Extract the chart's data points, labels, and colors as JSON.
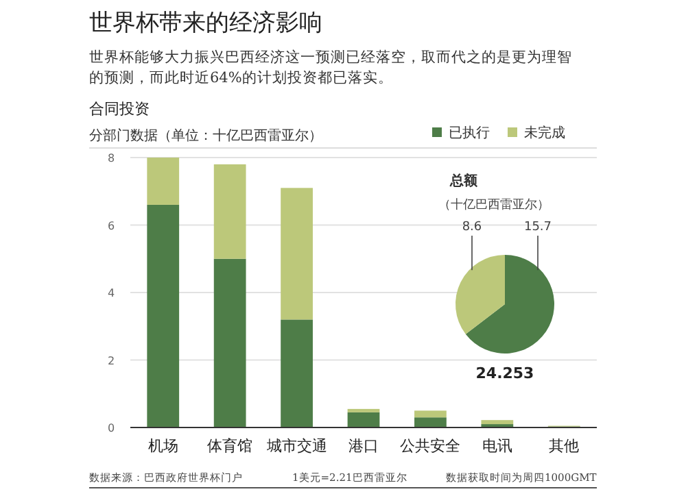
{
  "chart_data": [
    {
      "type": "bar",
      "title": "世界杯带来的经济影响",
      "subtitle": [
        "世界杯能够大力振兴巴西经济这一预测已经落空，取而代之的是更为理智",
        "的预测，而此时近64%的计划投资都已落实。"
      ],
      "ylabel": "分部门数据（单位：十亿巴西雷亚尔）",
      "annotations": [
        "合同投资",
        "数据来源：巴西政府世界杯门户",
        "1美元=2.21巴西雷亚尔",
        "数据获取时间为周四1000GMT"
      ],
      "categories": [
        "机场",
        "体育馆",
        "城市交通",
        "港口",
        "公共安全",
        "电讯",
        "其他"
      ],
      "stacked": true,
      "series": [
        {
          "name": "已执行",
          "color": "#4e7d48",
          "values": [
            6.6,
            5.0,
            3.2,
            0.45,
            0.3,
            0.1,
            0.03
          ]
        },
        {
          "name": "未完成",
          "color": "#bcc87a",
          "values": [
            1.4,
            2.8,
            3.9,
            0.1,
            0.2,
            0.12,
            0.02
          ]
        }
      ],
      "ylim": [
        0,
        8
      ],
      "yticks": [
        0,
        2,
        4,
        6,
        8
      ],
      "grid": "y",
      "legend": "top right"
    },
    {
      "type": "pie",
      "title": "总额",
      "subtitle": "（十亿巴西雷亚尔）",
      "categories": [
        null,
        null
      ],
      "values": [
        15.7,
        8.6
      ],
      "colors": [
        "#4e7d48",
        "#bcc87a"
      ],
      "data_labels": true,
      "annotations": [
        "24.253"
      ]
    }
  ]
}
